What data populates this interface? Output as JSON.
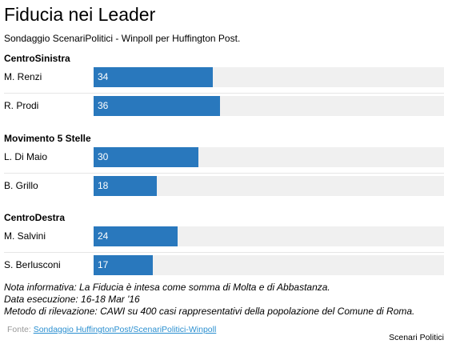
{
  "chart_data": {
    "type": "bar",
    "title": "Fiducia nei Leader",
    "subtitle": "Sondaggio ScenariPolitici - Winpoll per Huffington Post.",
    "orientation": "horizontal",
    "xlim": [
      0,
      100
    ],
    "groups": [
      {
        "name": "CentroSinistra",
        "rows": [
          {
            "label": "M. Renzi",
            "value": 34
          },
          {
            "label": "R. Prodi",
            "value": 36
          }
        ]
      },
      {
        "name": "Movimento 5 Stelle",
        "rows": [
          {
            "label": "L. Di Maio",
            "value": 30
          },
          {
            "label": "B. Grillo",
            "value": 18
          }
        ]
      },
      {
        "name": "CentroDestra",
        "rows": [
          {
            "label": "M. Salvini",
            "value": 24
          },
          {
            "label": "S. Berlusconi",
            "value": 17
          }
        ]
      }
    ],
    "bar_color": "#2978bd",
    "track_color": "#f0f0f0"
  },
  "notes": [
    "Nota informativa: La Fiducia è intesa come somma di Molta e di Abbastanza.",
    "Data esecuzione: 16-18 Mar '16",
    "Metodo di rilevazione: CAWI su 400 casi rappresentativi della popolazione del Comune di Roma."
  ],
  "source": {
    "prefix": "Fonte: ",
    "link_text": "Sondaggio HuffingtonPost/ScenariPolitici-Winpoll"
  },
  "credit": "Scenari Politici"
}
